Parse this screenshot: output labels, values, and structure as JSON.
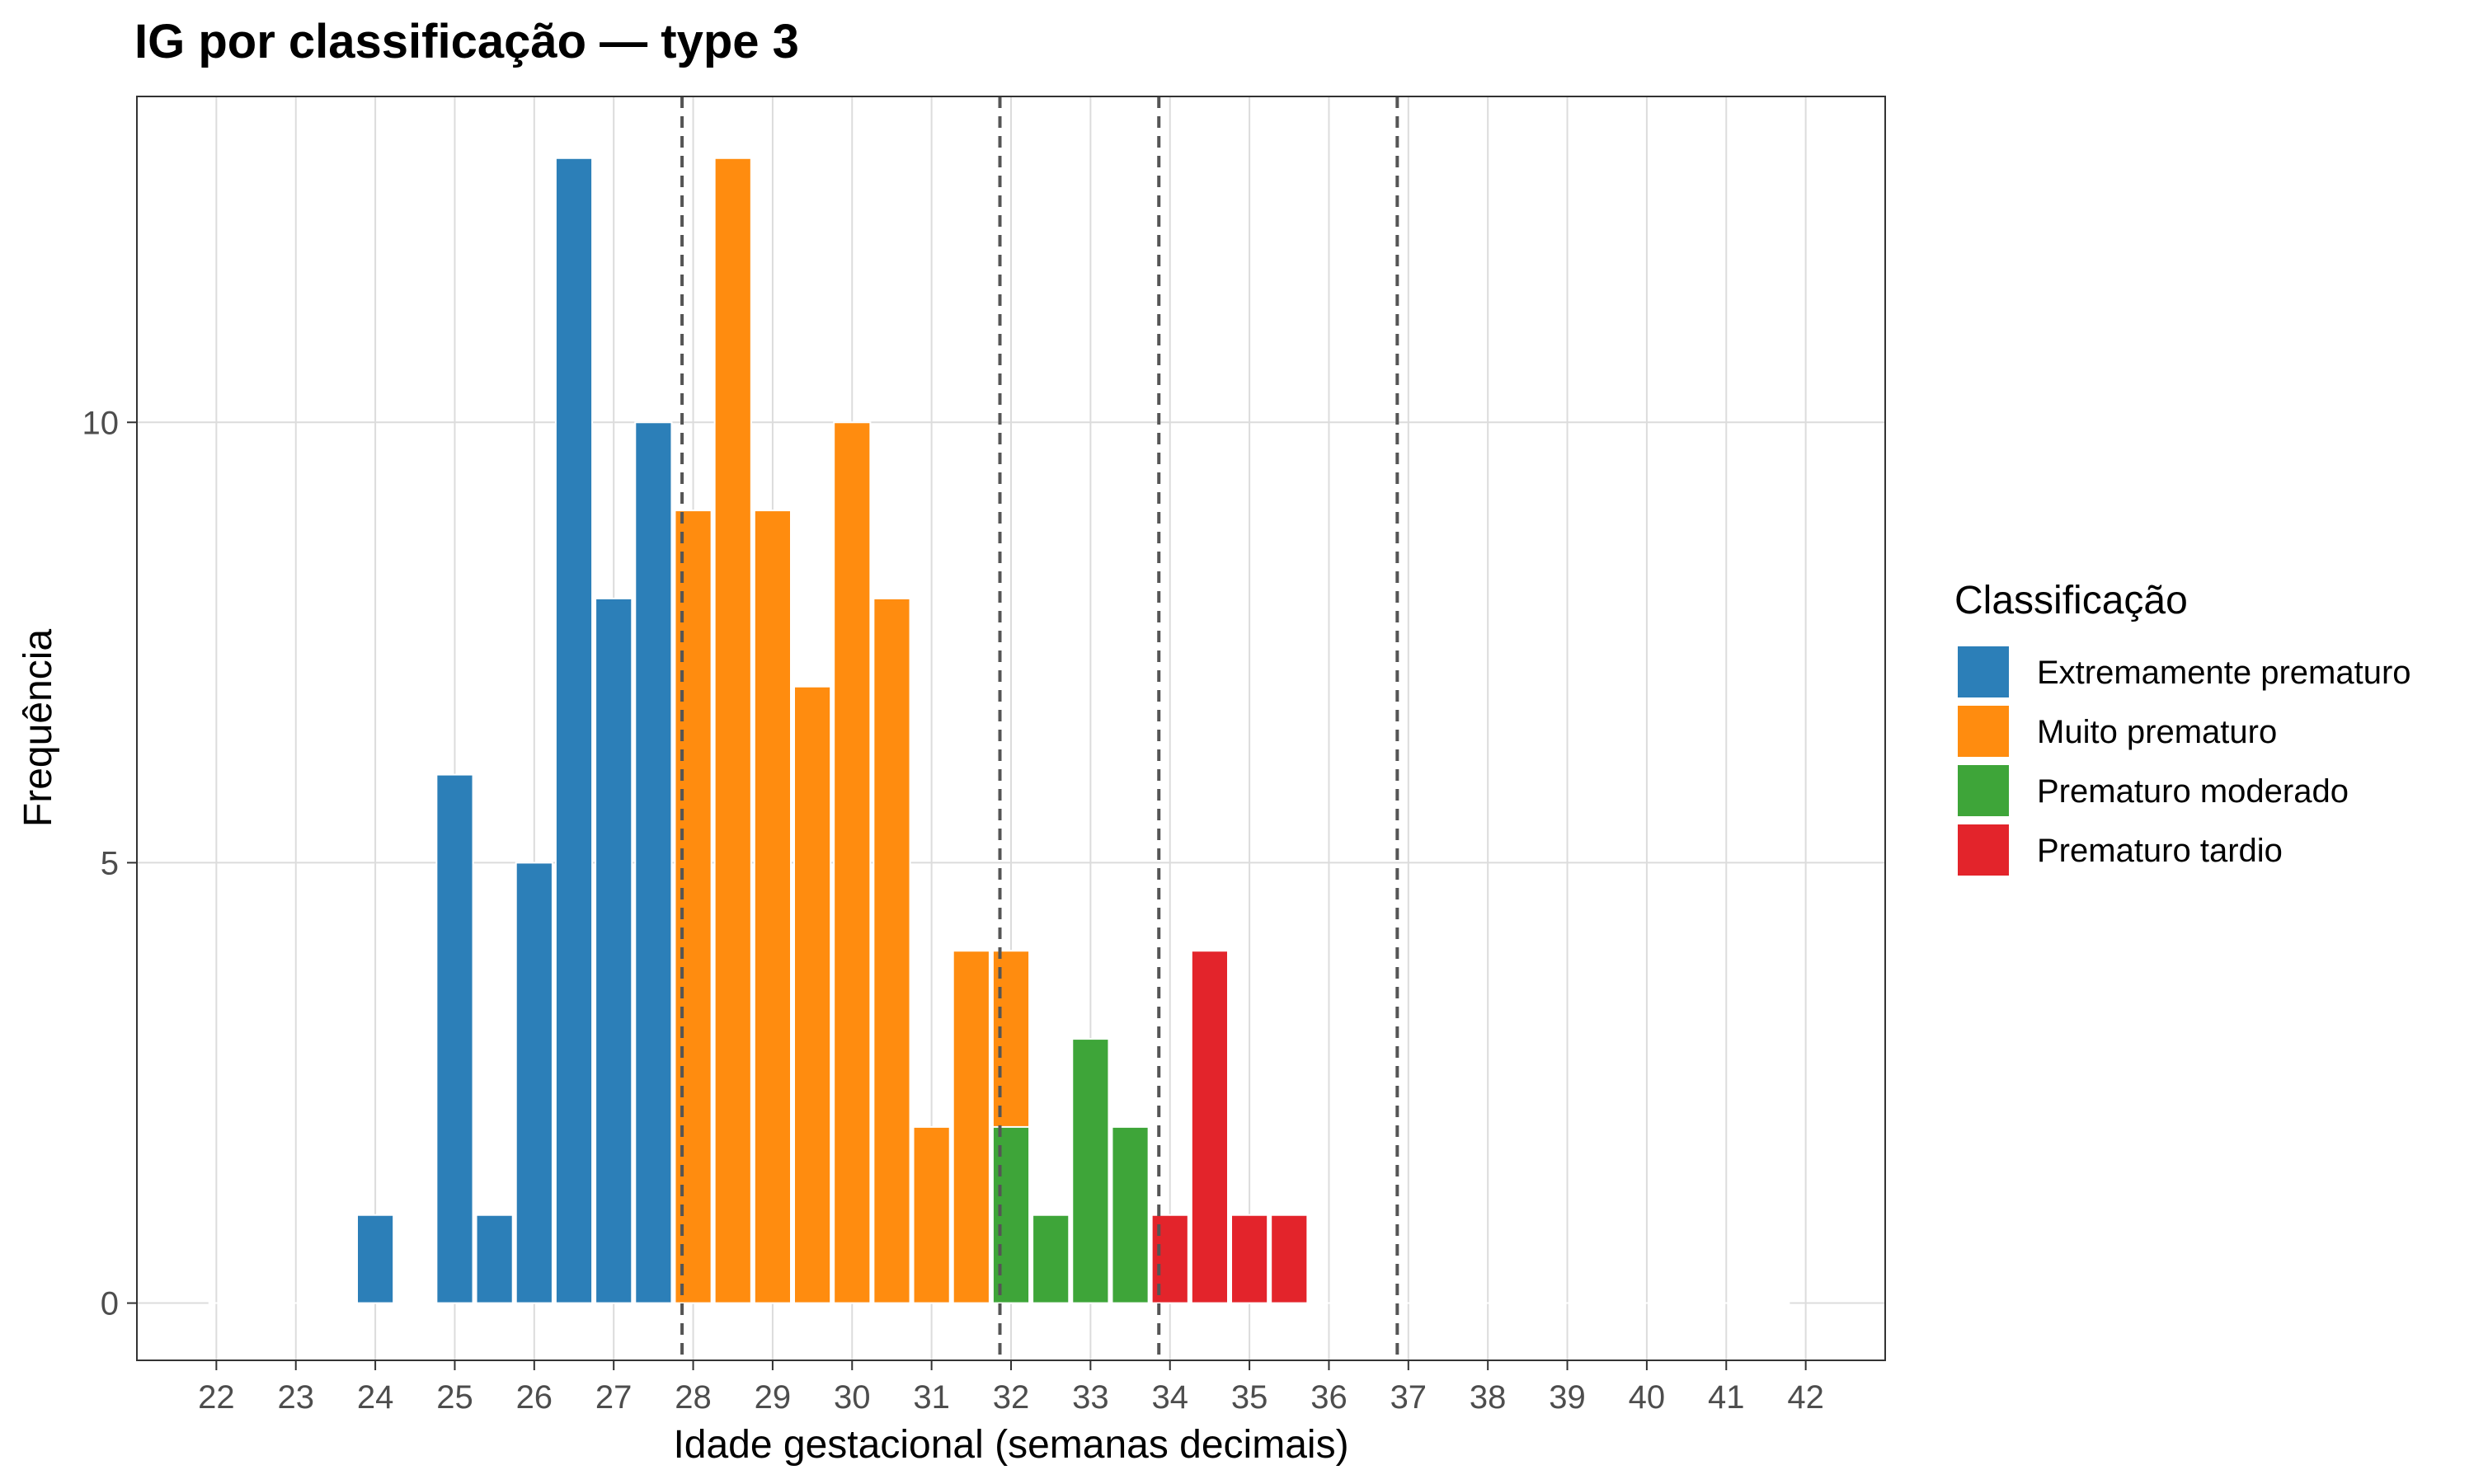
{
  "chart_data": {
    "type": "bar",
    "title": "IG por classificação — type 3",
    "xlabel": "Idade gestacional (semanas decimais)",
    "ylabel": "Frequência",
    "xlim": [
      21,
      43
    ],
    "ylim": [
      -0.65,
      13.7
    ],
    "x_ticks": [
      "22",
      "23",
      "24",
      "25",
      "26",
      "27",
      "28",
      "29",
      "30",
      "31",
      "32",
      "33",
      "34",
      "35",
      "36",
      "37",
      "38",
      "39",
      "40",
      "41",
      "42"
    ],
    "y_ticks": [
      "0",
      "5",
      "10"
    ],
    "bin_width": 0.5,
    "grid": true,
    "legend_position": "right",
    "legend_title": "Classificação",
    "series": [
      {
        "name": "Extremamente prematuro",
        "color": "#2c7fb8",
        "bins": [
          [
            24,
            1
          ],
          [
            25,
            6
          ],
          [
            25.5,
            1
          ],
          [
            26,
            5
          ],
          [
            26.5,
            13
          ],
          [
            27,
            8
          ],
          [
            27.5,
            10
          ]
        ]
      },
      {
        "name": "Muito prematuro",
        "color": "#ff8c0f",
        "bins": [
          [
            28,
            9
          ],
          [
            28.5,
            13
          ],
          [
            29,
            9
          ],
          [
            29.5,
            7
          ],
          [
            30,
            10
          ],
          [
            30.5,
            8
          ],
          [
            31,
            2
          ],
          [
            31.5,
            4
          ],
          [
            32,
            4
          ]
        ]
      },
      {
        "name": "Prematuro moderado",
        "color": "#3ea539",
        "bins": [
          [
            32,
            2
          ],
          [
            32.5,
            1
          ],
          [
            33,
            3
          ],
          [
            33.5,
            2
          ]
        ]
      },
      {
        "name": "Prematuro tardio",
        "color": "#e3242b",
        "bins": [
          [
            34,
            1
          ],
          [
            34.5,
            4
          ],
          [
            35,
            1
          ],
          [
            35.5,
            1
          ]
        ]
      }
    ],
    "vlines": [
      27.86,
      31.86,
      33.86,
      36.86
    ]
  }
}
